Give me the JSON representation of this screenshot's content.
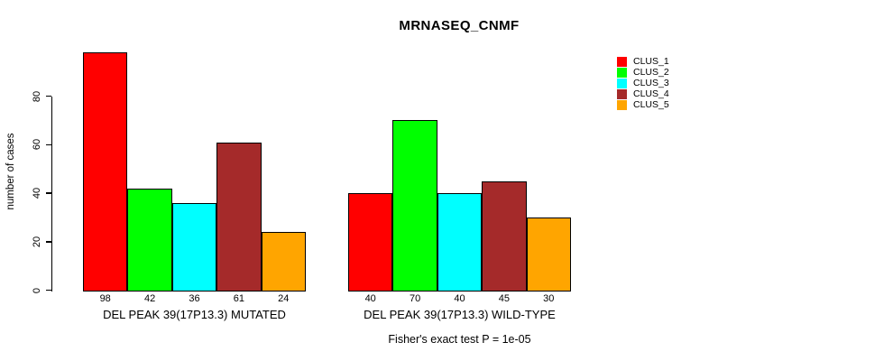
{
  "chart_data": {
    "type": "bar",
    "title": "MRNASEQ_CNMF",
    "ylabel": "number of cases",
    "xlabel": "",
    "yticks": [
      0,
      20,
      40,
      60,
      80
    ],
    "ylim": [
      0,
      98
    ],
    "grid": false,
    "legend_position": "right",
    "bar_value_labels": true,
    "categories": [
      "DEL PEAK 39(17P13.3) MUTATED",
      "DEL PEAK 39(17P13.3) WILD-TYPE"
    ],
    "series": [
      {
        "name": "CLUS_1",
        "color": "#FF0000",
        "values": [
          98,
          40
        ]
      },
      {
        "name": "CLUS_2",
        "color": "#00FF00",
        "values": [
          42,
          70
        ]
      },
      {
        "name": "CLUS_3",
        "color": "#00FFFF",
        "values": [
          36,
          40
        ]
      },
      {
        "name": "CLUS_4",
        "color": "#A52A2A",
        "values": [
          61,
          45
        ]
      },
      {
        "name": "CLUS_5",
        "color": "#FFA500",
        "values": [
          24,
          30
        ]
      }
    ],
    "annotation": "Fisher's exact test P = 1e-05"
  }
}
